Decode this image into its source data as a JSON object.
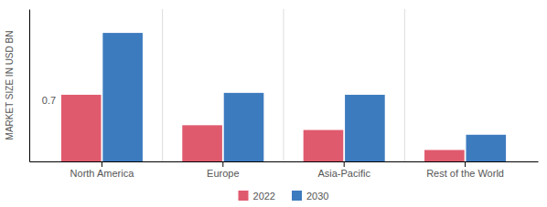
{
  "chart_data": {
    "type": "bar",
    "categories": [
      "North America",
      "Europe",
      "Asia-Pacific",
      "Rest of the World"
    ],
    "series": [
      {
        "name": "2022",
        "color": "#e05a6e",
        "values": [
          0.7,
          0.38,
          0.33,
          0.12
        ]
      },
      {
        "name": "2030",
        "color": "#3d7bbf",
        "values": [
          1.35,
          0.72,
          0.7,
          0.28
        ]
      }
    ],
    "y_label": "MARKET SIZE IN USD BN",
    "ylim": [
      0,
      1.6
    ],
    "yticks": [],
    "tick_labels": "x",
    "grid": false,
    "legend": "bottom",
    "annotations": [
      {
        "text": "0.7",
        "x": "North America",
        "y": 0.7
      }
    ]
  }
}
